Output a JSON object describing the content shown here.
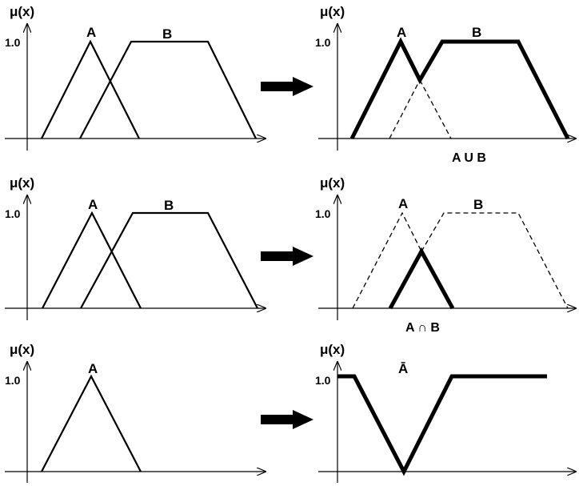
{
  "axis_label": "μ(x)",
  "tick_label": "1.0",
  "set_a": "A",
  "set_b": "B",
  "complement": "Ā",
  "union_label": "A U B",
  "intersection_label": "A ∩ B"
}
